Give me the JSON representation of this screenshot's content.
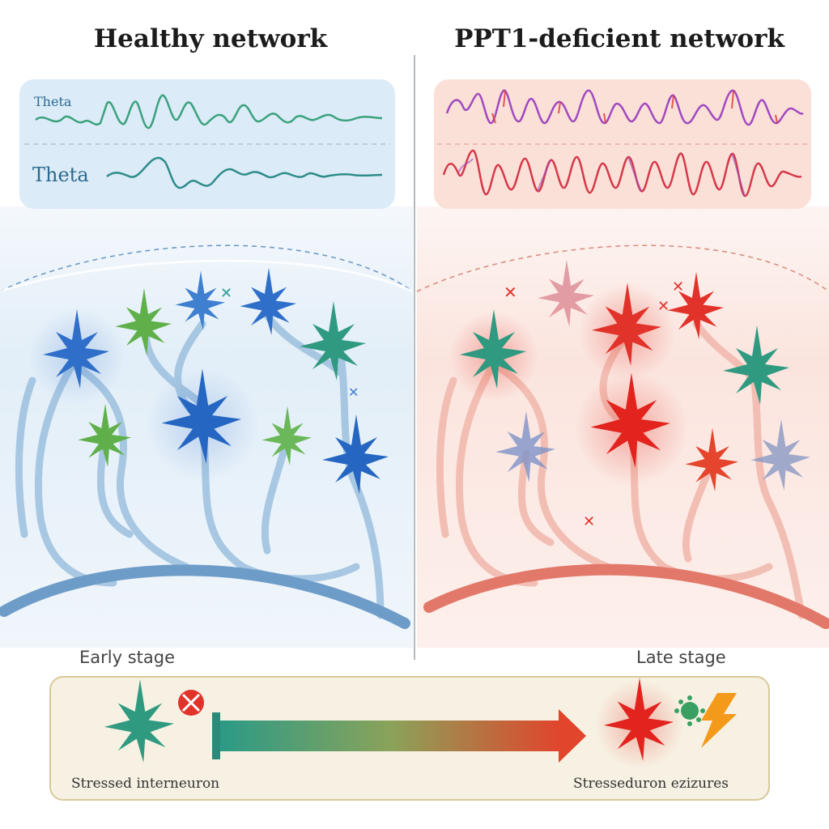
{
  "panels": {
    "left_title": "Healthy network",
    "right_title": "PPT1-deficient network"
  },
  "waves": {
    "label_1": "Theta",
    "label_2": "Theta"
  },
  "timeline": {
    "early_label": "Early stage",
    "late_label": "Late stage",
    "left_caption": "Stressed interneuron",
    "right_caption": "Stresseduron ezizures"
  },
  "colors": {
    "healthy_bg": "#dcebf7",
    "disease_bg": "#fbe2dc",
    "excitatory_blue": "#2f6fc9",
    "interneuron_green": "#5fb04a",
    "teal": "#2f9a80",
    "hyperactive_red": "#e2332b",
    "wave_purple": "#a04ac0"
  },
  "icons": [
    "neuron-icon",
    "lightning-bolt-icon",
    "virus-icon",
    "blocked-synapse-icon"
  ]
}
